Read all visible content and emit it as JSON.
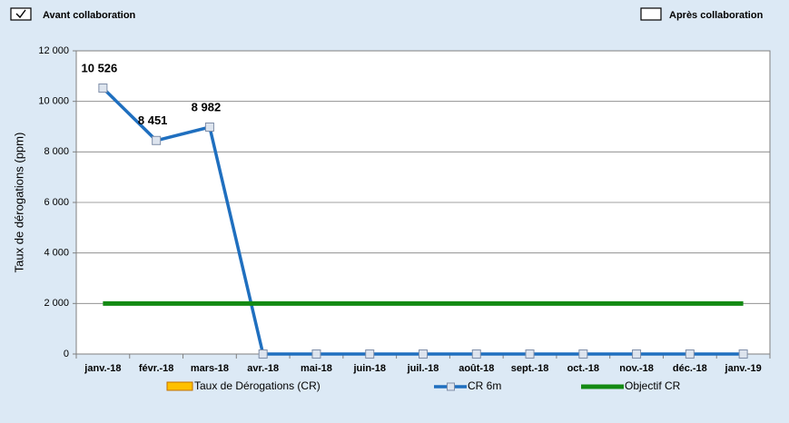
{
  "checkboxes": [
    {
      "label": "Avant collaboration",
      "checked": true
    },
    {
      "label": "Après collaboration",
      "checked": false
    }
  ],
  "chart_data": {
    "type": "line",
    "ylabel": "Taux de dérogations  (ppm)",
    "categories": [
      "janv.-18",
      "févr.-18",
      "mars-18",
      "avr.-18",
      "mai-18",
      "juin-18",
      "juil.-18",
      "août-18",
      "sept.-18",
      "oct.-18",
      "nov.-18",
      "déc.-18",
      "janv.-19"
    ],
    "series": [
      {
        "name": "Taux de Dérogations (CR)",
        "type": "bar",
        "color": "#ffc000",
        "values": [
          null,
          null,
          null,
          null,
          null,
          null,
          null,
          null,
          null,
          null,
          null,
          null,
          null
        ]
      },
      {
        "name": "CR 6m",
        "type": "line",
        "color": "#1f6fbf",
        "marker": true,
        "values": [
          10526,
          8451,
          8982,
          0,
          0,
          0,
          0,
          0,
          0,
          0,
          0,
          0,
          0
        ],
        "value_labels": [
          "10 526",
          "8 451",
          "8 982",
          null,
          null,
          null,
          null,
          null,
          null,
          null,
          null,
          null,
          null
        ]
      },
      {
        "name": "Objectif CR",
        "type": "line",
        "color": "#138a13",
        "marker": false,
        "values": [
          2000,
          2000,
          2000,
          2000,
          2000,
          2000,
          2000,
          2000,
          2000,
          2000,
          2000,
          2000,
          2000
        ]
      }
    ],
    "ylim": [
      0,
      12000
    ],
    "yticks": [
      0,
      {
        "value": 2000,
        "label": "2 000"
      },
      {
        "value": 4000,
        "label": "4 000"
      },
      {
        "value": 6000,
        "label": "6 000"
      },
      {
        "value": 8000,
        "label": "8 000"
      },
      {
        "value": 10000,
        "label": "10 000"
      },
      {
        "value": 12000,
        "label": "12 000"
      }
    ],
    "grid": true,
    "legend": "bottom"
  }
}
